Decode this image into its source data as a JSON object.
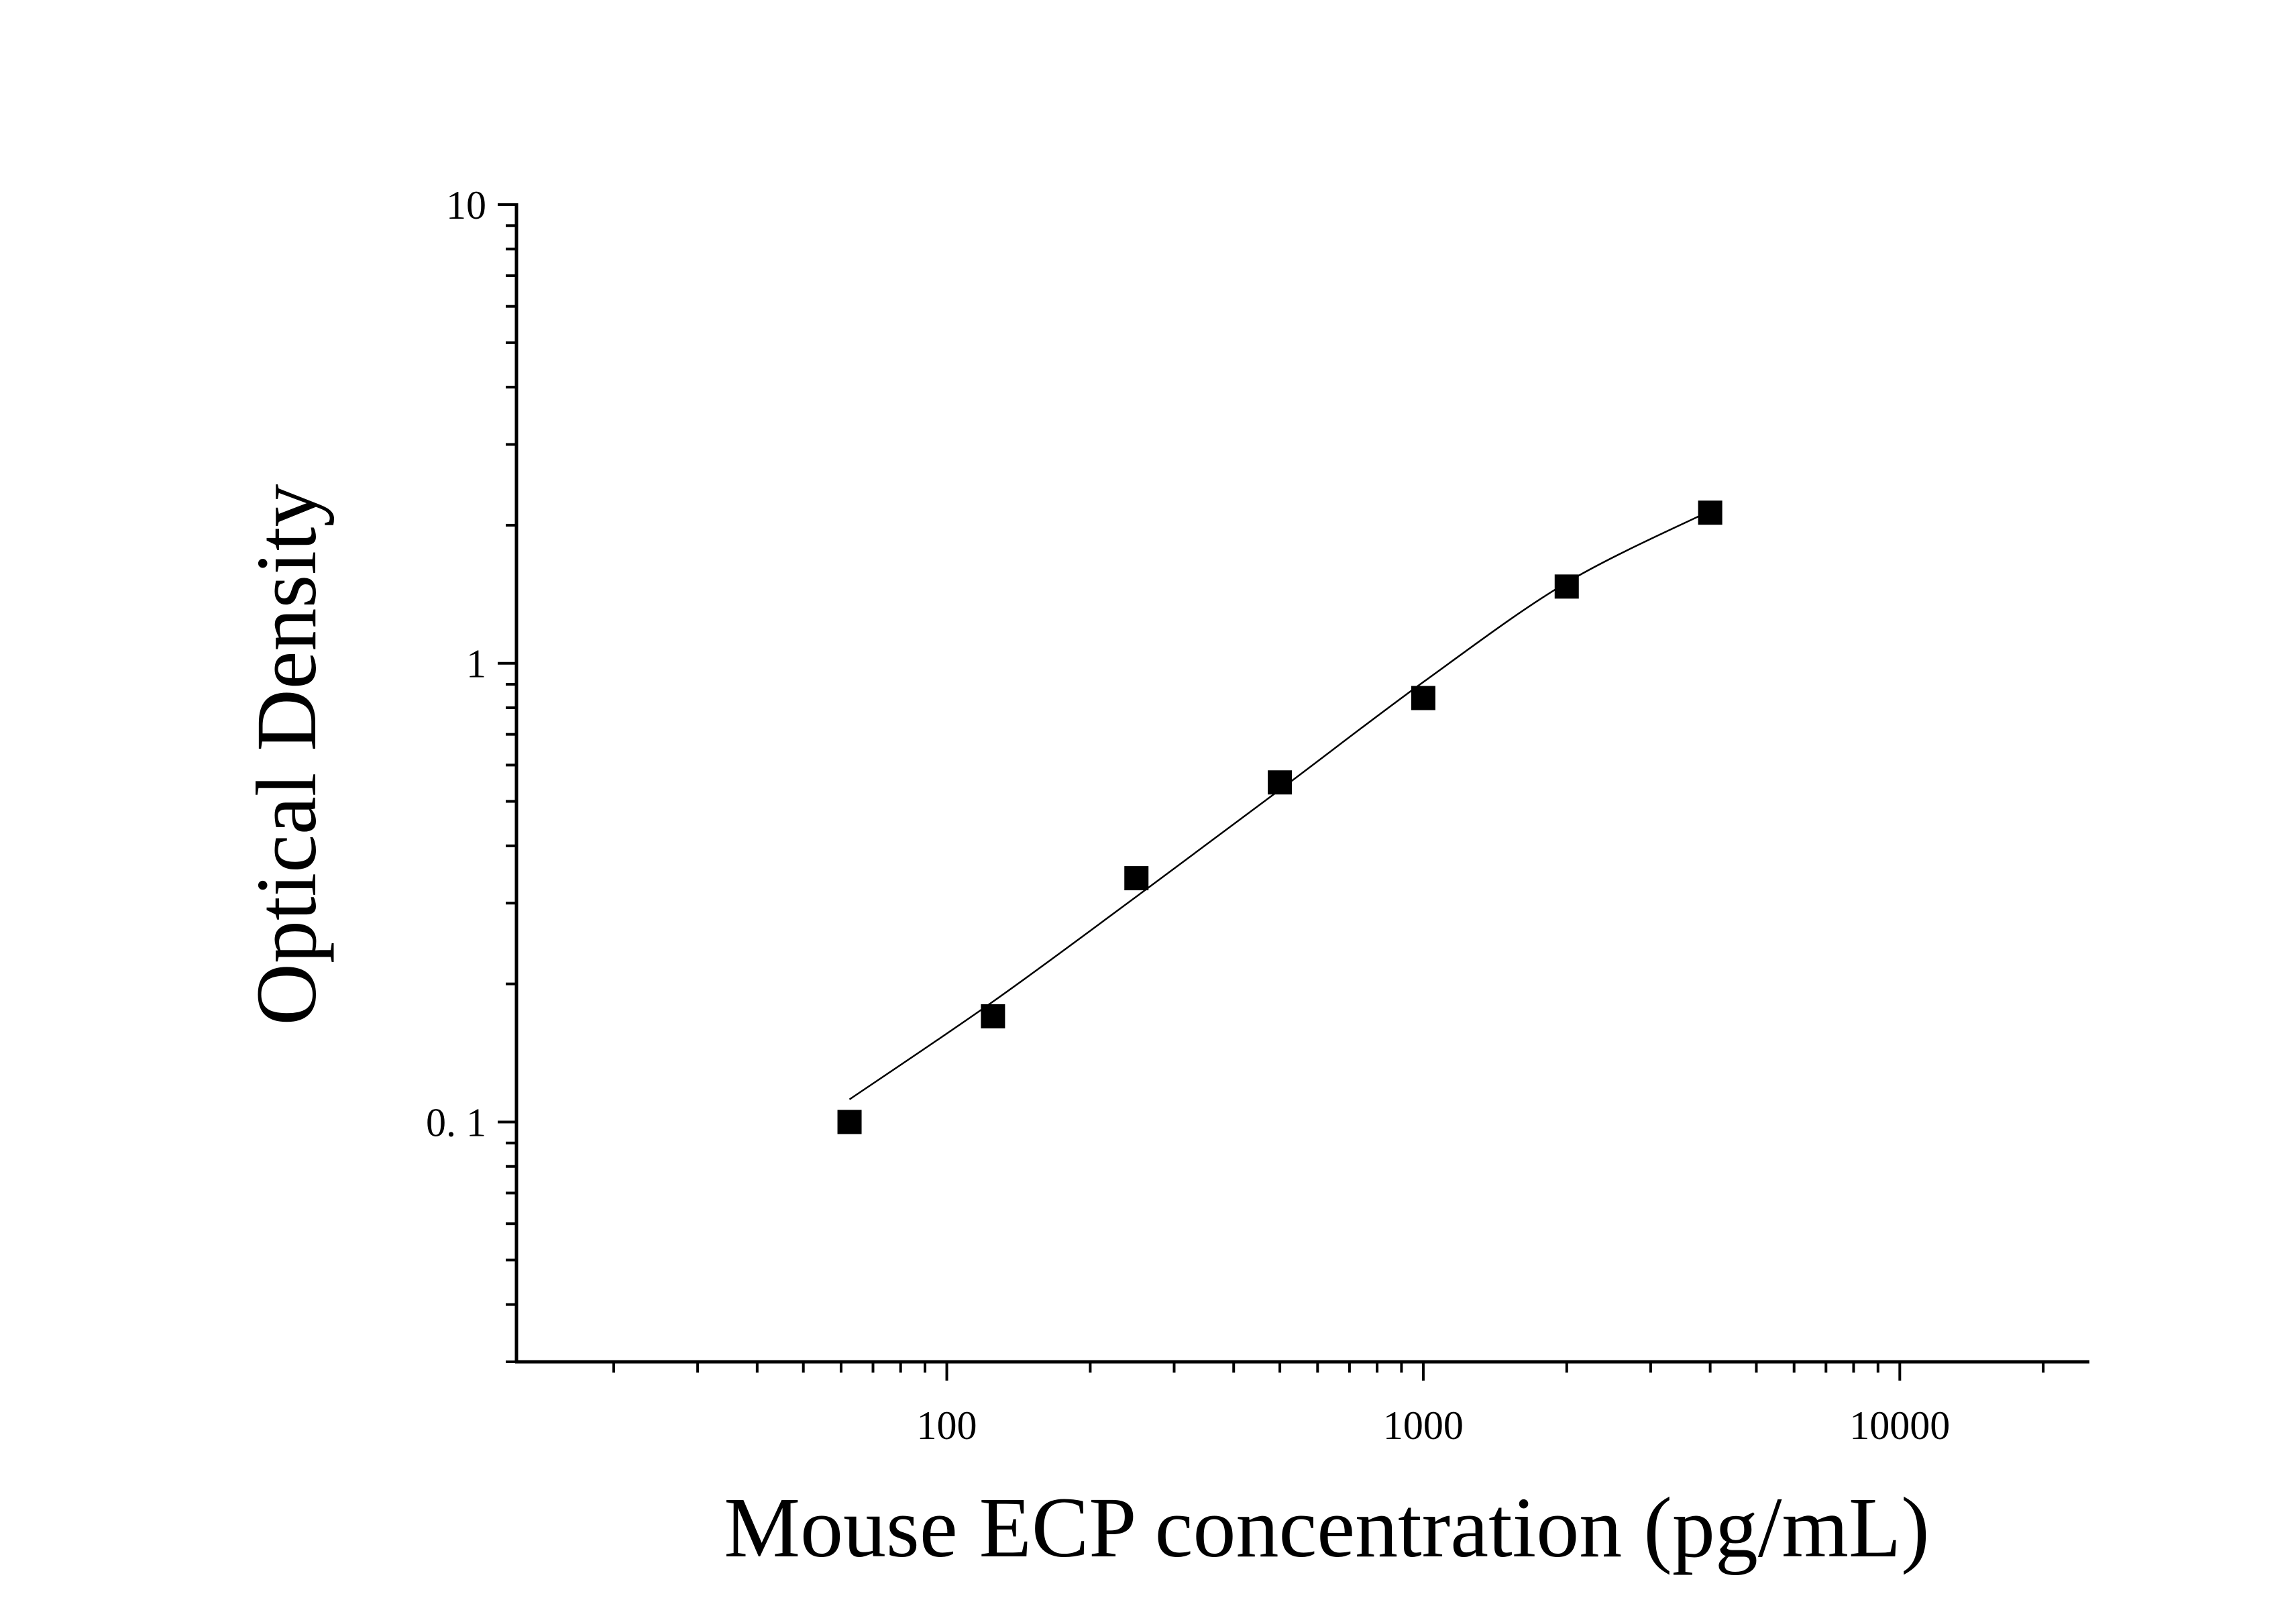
{
  "chart_data": {
    "type": "scatter",
    "title": "",
    "xlabel": "Mouse ECP concentration (pg/mL)",
    "ylabel": "Optical Density",
    "x_scale": "log",
    "y_scale": "log",
    "xlim": [
      12.5,
      25000
    ],
    "ylim": [
      0.03,
      10
    ],
    "x_ticks": [
      {
        "value": 100,
        "label": "100"
      },
      {
        "value": 1000,
        "label": "1000"
      },
      {
        "value": 10000,
        "label": "10000"
      }
    ],
    "y_ticks": [
      {
        "value": 0.1,
        "label": "0. 1"
      },
      {
        "value": 1,
        "label": "1"
      },
      {
        "value": 10,
        "label": "10"
      }
    ],
    "grid": false,
    "legend": "none",
    "series": [
      {
        "marker": "square",
        "color": "#000000",
        "x": [
          62.5,
          125,
          250,
          500,
          1000,
          2000,
          4000
        ],
        "y": [
          0.1,
          0.17,
          0.34,
          0.55,
          0.84,
          1.47,
          2.13
        ]
      }
    ],
    "fit_curve": {
      "color": "#000000",
      "x": [
        62.5,
        125,
        250,
        500,
        1000,
        2000,
        4000
      ],
      "y": [
        0.112,
        0.183,
        0.31,
        0.53,
        0.91,
        1.5,
        2.15
      ]
    }
  }
}
